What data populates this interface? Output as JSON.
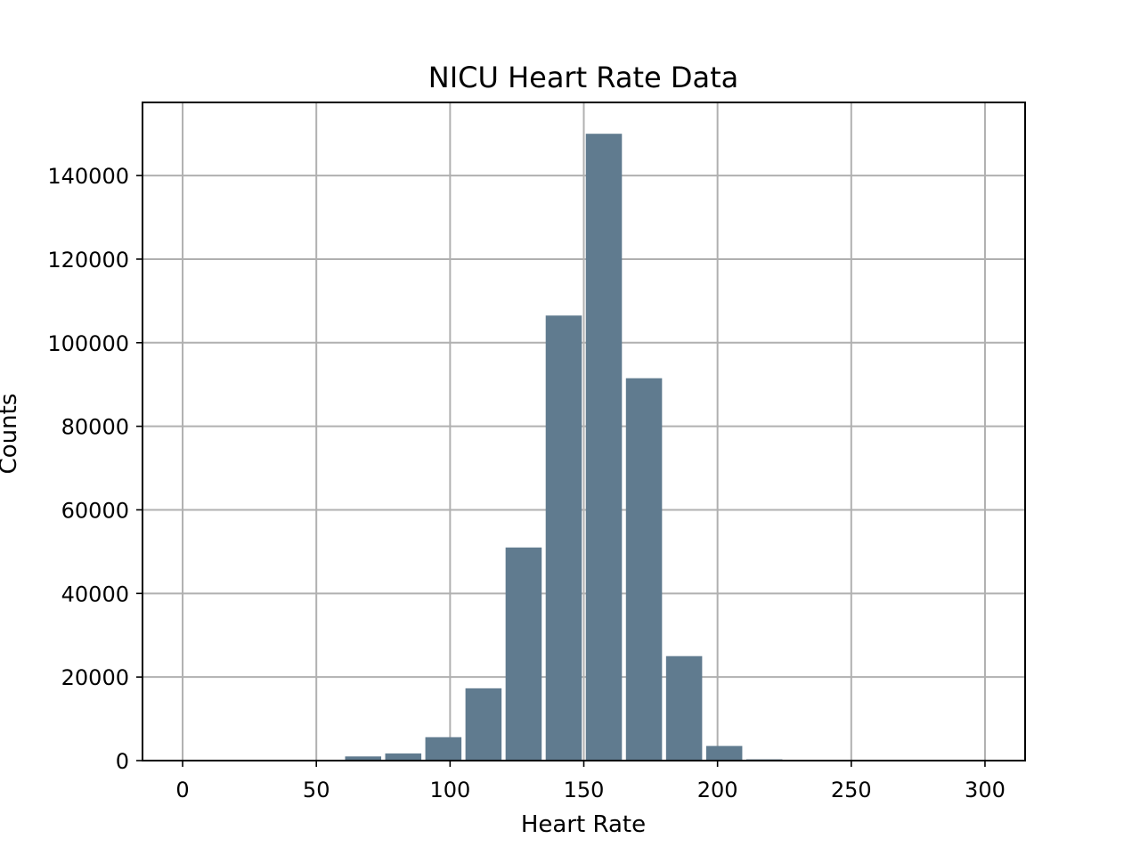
{
  "chart_data": {
    "type": "bar",
    "title": "NICU Heart Rate Data",
    "xlabel": "Heart Rate",
    "ylabel": "Counts",
    "xlim": [
      -15,
      315
    ],
    "ylim": [
      0,
      157500
    ],
    "xticks": [
      0,
      50,
      100,
      150,
      200,
      250,
      300
    ],
    "yticks": [
      0,
      20000,
      40000,
      60000,
      80000,
      100000,
      120000,
      140000
    ],
    "grid": true,
    "bar_color": "#607b8f",
    "bin_width": 15,
    "bin_edges": [
      0,
      15,
      30,
      45,
      60,
      75,
      90,
      105,
      120,
      135,
      150,
      165,
      180,
      195,
      210,
      225,
      240,
      255,
      270,
      285,
      300
    ],
    "values": [
      0,
      0,
      0,
      0,
      1000,
      1700,
      5600,
      17300,
      51000,
      106500,
      150000,
      91500,
      25000,
      3500,
      300,
      0,
      0,
      0,
      0,
      0
    ]
  }
}
